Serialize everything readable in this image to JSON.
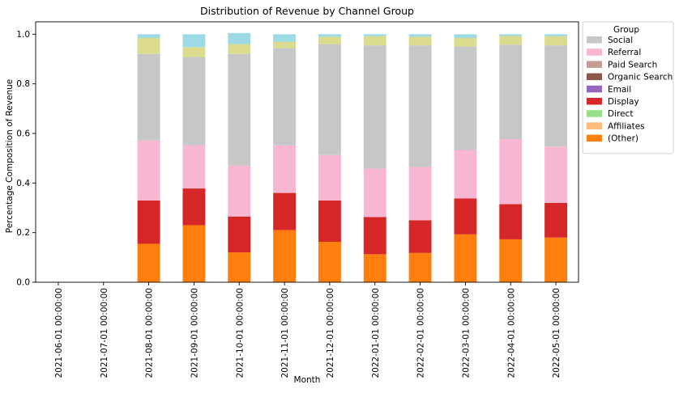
{
  "chart_data": {
    "type": "bar",
    "stacked": true,
    "title": "Distribution of Revenue by Channel Group",
    "xlabel": "Month",
    "ylabel": "Percentage Composition of Revenue",
    "ylim": [
      0,
      1.05
    ],
    "yticks": [
      0.0,
      0.2,
      0.4,
      0.6,
      0.8,
      1.0
    ],
    "ytick_labels": [
      "0.0",
      "0.2",
      "0.4",
      "0.6",
      "0.8",
      "1.0"
    ],
    "grid": false,
    "legend": {
      "title": "Group",
      "placement": "outside-top-right"
    },
    "categories": [
      "2021-06-01 00:00:00",
      "2021-07-01 00:00:00",
      "2021-08-01 00:00:00",
      "2021-09-01 00:00:00",
      "2021-10-01 00:00:00",
      "2021-11-01 00:00:00",
      "2021-12-01 00:00:00",
      "2022-01-01 00:00:00",
      "2022-02-01 00:00:00",
      "2022-03-01 00:00:00",
      "2022-04-01 00:00:00",
      "2022-05-01 00:00:00"
    ],
    "series": [
      {
        "name": "(Other)",
        "color": "#ff7f0e",
        "values": [
          0,
          0,
          0.155,
          0.23,
          0.12,
          0.21,
          0.163,
          0.113,
          0.118,
          0.193,
          0.173,
          0.18
        ]
      },
      {
        "name": "Affiliates",
        "color": "#ffbb78",
        "values": [
          0,
          0,
          0,
          0,
          0,
          0,
          0,
          0,
          0,
          0,
          0,
          0
        ]
      },
      {
        "name": "Direct",
        "color": "#98df8a",
        "values": [
          0,
          0,
          0,
          0,
          0,
          0,
          0,
          0,
          0,
          0,
          0,
          0
        ]
      },
      {
        "name": "Display",
        "color": "#d62728",
        "values": [
          0,
          0,
          0.175,
          0.148,
          0.145,
          0.15,
          0.167,
          0.15,
          0.132,
          0.145,
          0.142,
          0.14
        ]
      },
      {
        "name": "Email",
        "color": "#9467bd",
        "values": [
          0,
          0,
          0,
          0,
          0,
          0,
          0,
          0,
          0,
          0,
          0,
          0
        ]
      },
      {
        "name": "Organic Search",
        "color": "#8c564b",
        "values": [
          0,
          0,
          0,
          0,
          0,
          0,
          0,
          0,
          0,
          0,
          0,
          0
        ]
      },
      {
        "name": "Paid Search",
        "color": "#c49c94",
        "values": [
          0,
          0,
          0,
          0,
          0,
          0,
          0,
          0,
          0,
          0,
          0,
          0
        ]
      },
      {
        "name": "Referral",
        "color": "#f7b6d2",
        "values": [
          0,
          0,
          0.242,
          0.175,
          0.205,
          0.192,
          0.183,
          0.195,
          0.215,
          0.195,
          0.262,
          0.227
        ]
      },
      {
        "name": "Social",
        "color": "#c7c7c7",
        "values": [
          0,
          0,
          0.348,
          0.355,
          0.45,
          0.392,
          0.447,
          0.497,
          0.49,
          0.417,
          0.381,
          0.408
        ]
      },
      {
        "name": "",
        "color": "#dbdb8d",
        "values": [
          0,
          0,
          0.065,
          0.04,
          0.04,
          0.026,
          0.03,
          0.037,
          0.035,
          0.035,
          0.035,
          0.037
        ]
      },
      {
        "name": "",
        "color": "#9edae5",
        "values": [
          0,
          0,
          0.015,
          0.052,
          0.045,
          0.03,
          0.01,
          0.008,
          0.01,
          0.015,
          0.007,
          0.008
        ]
      }
    ]
  }
}
